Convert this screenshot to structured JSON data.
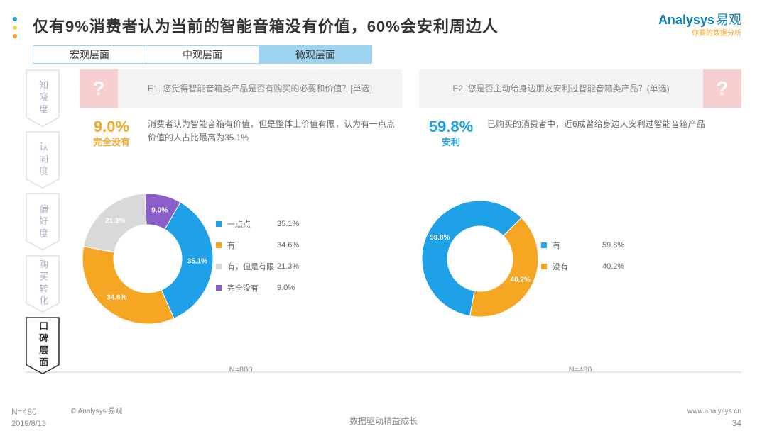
{
  "title": "仅有9%消费者认为当前的智能音箱没有价值，60%会安利周边人",
  "logo": {
    "name1": "Analysys",
    "name2": "易观",
    "sub": "你要的数据分析"
  },
  "tabs": {
    "items": [
      "宏观层面",
      "中观层面",
      "微观层面"
    ],
    "active_index": 2
  },
  "sidebar": {
    "items": [
      "知晓度",
      "认同度",
      "偏好度",
      "购买转化",
      "口碑层面"
    ],
    "active_index": 4,
    "border_color": "#c9d3e2",
    "active_border_color": "#333"
  },
  "colors": {
    "title_text": "#333333",
    "tab_border": "#9ed3f0",
    "tab_active_bg": "#9ed3f0",
    "qmark_bg": "#f7cfcf",
    "qtext_bg": "#f3f3f3",
    "accent_orange": "#f5a623",
    "accent_blue": "#1ea1e6",
    "footer_sep": "#e6e6e6"
  },
  "panel_left": {
    "question": "E1. 您觉得智能音箱类产品是否有购买的必要和价值？[单选]",
    "qmark": "?",
    "bignum": {
      "value": "9.0%",
      "label": "完全没有",
      "color": "#f5a623"
    },
    "desc": "消费者认为智能音箱有价值，但是整体上价值有限，认为有一点点价值的人占比最高为35.1%",
    "chart": {
      "type": "donut",
      "n": "N=800",
      "inner_radius": 48,
      "outer_radius": 92,
      "slices": [
        {
          "label": "一点点",
          "value": 35.1,
          "color": "#1ea1e6"
        },
        {
          "label": "有",
          "value": 34.6,
          "color": "#f5a623"
        },
        {
          "label": "有，但是有限",
          "value": 21.3,
          "color": "#d9d9d9"
        },
        {
          "label": "完全没有",
          "value": 9.0,
          "color": "#8a5fc7"
        }
      ],
      "start_angle_deg": -60
    }
  },
  "panel_right": {
    "question": "E2. 您是否主动给身边朋友安利过智能音箱类产品？(单选)",
    "qmark": "?",
    "bignum": {
      "value": "59.8%",
      "label": "安利",
      "color": "#1ea1e6"
    },
    "desc": "已购买的消费者中，近6成曾给身边人安利过智能音箱产品",
    "chart": {
      "type": "donut",
      "n": "N=480",
      "inner_radius": 46,
      "outer_radius": 82,
      "slices": [
        {
          "label": "有",
          "value": 59.8,
          "color": "#1ea1e6"
        },
        {
          "label": "没有",
          "value": 40.2,
          "color": "#f5a623"
        }
      ],
      "start_angle_deg": 100
    }
  },
  "footer": {
    "n": "N=480",
    "copy": "© Analysys 易观",
    "date": "2019/8/13",
    "tagline": "数据驱动精益成长",
    "site": "www.analysys.cn",
    "page": "34"
  },
  "deco_dots": [
    "#1ea1e6",
    "#ffd24a",
    "#f5a623"
  ]
}
